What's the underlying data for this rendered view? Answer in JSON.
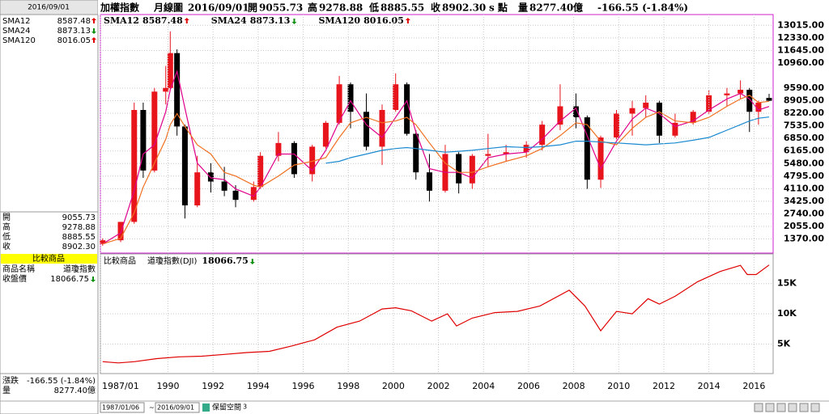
{
  "header": {
    "name": "加權指數",
    "period": "月線圖",
    "date": "2016/09/01",
    "open_label": "開",
    "open": "9055.73",
    "high_label": "高",
    "high": "9278.88",
    "low_label": "低",
    "low": "8885.55",
    "close_label": "收",
    "close": "8902.30",
    "unit": "s 點",
    "volume_label": "量",
    "volume": "8277.40",
    "volume_unit": "億",
    "change": "-166.55 (-1.84%)"
  },
  "sidebar": {
    "date": "2016/09/01",
    "info": [
      [
        "開",
        "9055.73"
      ],
      [
        "高",
        "9278.88"
      ],
      [
        "低",
        "8885.55"
      ],
      [
        "收",
        "8902.30"
      ]
    ],
    "compare_title": "比較商品",
    "compare_rows": [
      [
        "商品名稱",
        "道瓊指數"
      ],
      [
        "收盤價",
        "18066.75"
      ]
    ],
    "bottom": [
      [
        "漲跌",
        "-166.55 (-1.84%)"
      ],
      [
        "量",
        "8277.40億"
      ]
    ]
  },
  "toolbar": {
    "start": "1987/01/06",
    "end": "2016/09/01",
    "reserve_label": "保留空間",
    "reserve": "3"
  },
  "chart_data": [
    {
      "type": "candlestick",
      "x": [
        1987.1,
        1987.9,
        1988.5,
        1988.9,
        1989.4,
        1989.9,
        1990.1,
        1990.4,
        1990.75,
        1991.3,
        1991.9,
        1992.5,
        1993.0,
        1993.8,
        1994.1,
        1994.9,
        1995.6,
        1996.4,
        1997.0,
        1997.6,
        1998.1,
        1998.8,
        1999.5,
        2000.1,
        2000.6,
        2001.0,
        2001.6,
        2002.3,
        2002.9,
        2003.5,
        2004.2,
        2005.0,
        2005.9,
        2006.6,
        2007.4,
        2008.1,
        2008.6,
        2009.2,
        2009.9,
        2010.6,
        2011.2,
        2011.8,
        2012.5,
        2013.3,
        2014.0,
        2014.8,
        2015.4,
        2015.8,
        2016.2,
        2016.67
      ],
      "open": [
        1100,
        1300,
        2300,
        8400,
        5100,
        9400,
        9600,
        11500,
        7500,
        3200,
        5000,
        4500,
        4000,
        3500,
        4200,
        5900,
        6600,
        4900,
        6400,
        7700,
        9800,
        8300,
        6400,
        8400,
        9800,
        7100,
        5000,
        4000,
        6000,
        4400,
        5900,
        6000,
        6100,
        6500,
        7600,
        8600,
        8000,
        4600,
        6900,
        8200,
        8500,
        8800,
        7000,
        7700,
        8300,
        9200,
        9300,
        9500,
        8300,
        9055.73
      ],
      "high": [
        1400,
        2300,
        8800,
        8800,
        9600,
        10800,
        12682,
        11700,
        7600,
        5900,
        5500,
        5300,
        4300,
        4500,
        6100,
        7200,
        6700,
        6500,
        7800,
        10256,
        9900,
        9300,
        8700,
        10393,
        9900,
        7300,
        6000,
        6500,
        6100,
        6000,
        7100,
        6500,
        6700,
        7800,
        9800,
        9300,
        8100,
        7000,
        8400,
        8900,
        9200,
        8900,
        8200,
        8400,
        9500,
        9600,
        10014,
        9600,
        8900,
        9278.88
      ],
      "low": [
        1000,
        1200,
        2200,
        4700,
        5000,
        8700,
        9500,
        7000,
        2485,
        3100,
        3900,
        3700,
        3098,
        3400,
        4100,
        5600,
        4700,
        4500,
        6300,
        7600,
        7400,
        6200,
        5400,
        8300,
        7000,
        4600,
        3411,
        3900,
        3850,
        4100,
        5300,
        5600,
        5800,
        6200,
        7300,
        7400,
        4100,
        4150,
        6800,
        7000,
        8000,
        6600,
        6900,
        7600,
        8200,
        8600,
        9000,
        7200,
        7600,
        8885.55
      ],
      "close": [
        1300,
        2300,
        8400,
        5100,
        9400,
        9600,
        11500,
        7500,
        3200,
        5000,
        4500,
        4000,
        3500,
        4200,
        5900,
        6600,
        4900,
        6400,
        7700,
        9800,
        8300,
        6400,
        8400,
        9800,
        7100,
        5000,
        4000,
        6000,
        4400,
        5900,
        6000,
        6100,
        6500,
        7600,
        8600,
        8000,
        4600,
        6900,
        8200,
        8500,
        8800,
        7000,
        7700,
        8300,
        9200,
        9300,
        9500,
        8300,
        8800,
        8902.3
      ],
      "up_color": "#e8141c",
      "down_color": "#000000",
      "series": [
        {
          "name": "SMA12",
          "color": "#e0008a",
          "trend": "up",
          "values": [
            1100,
            1700,
            4000,
            6000,
            6500,
            8300,
            9500,
            10500,
            8500,
            5500,
            4700,
            4600,
            4100,
            3700,
            4200,
            6000,
            6000,
            5100,
            6200,
            7800,
            8900,
            7600,
            6900,
            8000,
            8900,
            7200,
            5200,
            5000,
            5000,
            4700,
            5800,
            6000,
            6100,
            6800,
            7800,
            8500,
            7000,
            5200,
            6700,
            7900,
            8500,
            8200,
            7500,
            7800,
            8400,
            9000,
            9300,
            9000,
            8400,
            8587.48
          ]
        },
        {
          "name": "SMA24",
          "color": "#f07020",
          "trend": "down",
          "values": [
            1100,
            1400,
            2800,
            4200,
            5500,
            6800,
            7600,
            8200,
            7500,
            6500,
            6000,
            5000,
            4800,
            4300,
            4200,
            4800,
            5400,
            5600,
            5800,
            6900,
            7700,
            8000,
            7700,
            7800,
            8000,
            7600,
            6600,
            5500,
            5000,
            5000,
            5300,
            5600,
            5900,
            6300,
            7000,
            7700,
            7600,
            6700,
            6500,
            7400,
            8000,
            8300,
            7800,
            7700,
            8000,
            8600,
            9000,
            9200,
            8800,
            8873.13
          ]
        },
        {
          "name": "SMA120",
          "color": "#1a8ad0",
          "trend": "up",
          "values": [
            null,
            null,
            null,
            null,
            null,
            null,
            null,
            null,
            null,
            null,
            null,
            null,
            null,
            null,
            null,
            null,
            null,
            null,
            5500,
            5600,
            5800,
            6000,
            6200,
            6300,
            6350,
            6300,
            6200,
            6100,
            6150,
            6200,
            6300,
            6400,
            6350,
            6400,
            6500,
            6700,
            6700,
            6650,
            6600,
            6550,
            6500,
            6550,
            6600,
            6750,
            6900,
            7300,
            7600,
            7800,
            7950,
            8016.05
          ]
        }
      ],
      "xlim": [
        1987,
        2016.85
      ],
      "ylim": [
        600,
        13600
      ],
      "yticks": [
        {
          "value": 1370,
          "label": "1370.00"
        },
        {
          "value": 2055,
          "label": "2055.00"
        },
        {
          "value": 2740,
          "label": "2740.00"
        },
        {
          "value": 3425,
          "label": "3425.00"
        },
        {
          "value": 4110,
          "label": "4110.00"
        },
        {
          "value": 4795,
          "label": "4795.00"
        },
        {
          "value": 5480,
          "label": "5480.00"
        },
        {
          "value": 6165,
          "label": "6165.00"
        },
        {
          "value": 6850,
          "label": "6850.00"
        },
        {
          "value": 7535,
          "label": "7535.00"
        },
        {
          "value": 8220,
          "label": "8220.00"
        },
        {
          "value": 8905,
          "label": "8905.00"
        },
        {
          "value": 9590,
          "label": "9590.00"
        },
        {
          "value": 10960,
          "label": "10960.00"
        },
        {
          "value": 11645,
          "label": "11645.00"
        },
        {
          "value": 12330,
          "label": "12330.00"
        },
        {
          "value": 13015,
          "label": "13015.00"
        }
      ],
      "grid": true
    },
    {
      "type": "line",
      "legend_title": "比較商品",
      "x": [
        1987.1,
        1987.8,
        1988.5,
        1989.5,
        1990.5,
        1991.5,
        1992.5,
        1993.5,
        1994.5,
        1995.5,
        1996.5,
        1997.5,
        1998.5,
        1999.5,
        2000.1,
        2000.8,
        2001.7,
        2002.4,
        2002.8,
        2003.5,
        2004.5,
        2005.5,
        2006.5,
        2007.8,
        2008.5,
        2009.2,
        2009.9,
        2010.6,
        2011.3,
        2011.8,
        2012.5,
        2013.5,
        2014.5,
        2015.4,
        2015.7,
        2016.1,
        2016.67
      ],
      "series": [
        {
          "name": "道瓊指數(DJI)",
          "color": "#e00000",
          "trend": "down",
          "values": [
            2100,
            1900,
            2100,
            2600,
            2900,
            3000,
            3300,
            3600,
            3800,
            4700,
            5700,
            7800,
            8800,
            10800,
            11000,
            10500,
            8800,
            10000,
            8000,
            9300,
            10200,
            10400,
            11300,
            13900,
            11300,
            7200,
            10400,
            10000,
            12500,
            11600,
            12900,
            15300,
            17000,
            18000,
            16500,
            16500,
            18066.75
          ]
        }
      ],
      "xlim": [
        1987,
        2016.85
      ],
      "ylim": [
        0,
        19900
      ],
      "yticks": [
        {
          "value": 5000,
          "label": "5K"
        },
        {
          "value": 10000,
          "label": "10K"
        },
        {
          "value": 15000,
          "label": "15K"
        }
      ],
      "xticks": [
        {
          "value": 1987,
          "label": "1987/01"
        },
        1990,
        1992,
        1994,
        1996,
        1998,
        2000,
        2002,
        2004,
        2006,
        2008,
        2010,
        2012,
        2014,
        2016
      ],
      "grid": true
    }
  ]
}
